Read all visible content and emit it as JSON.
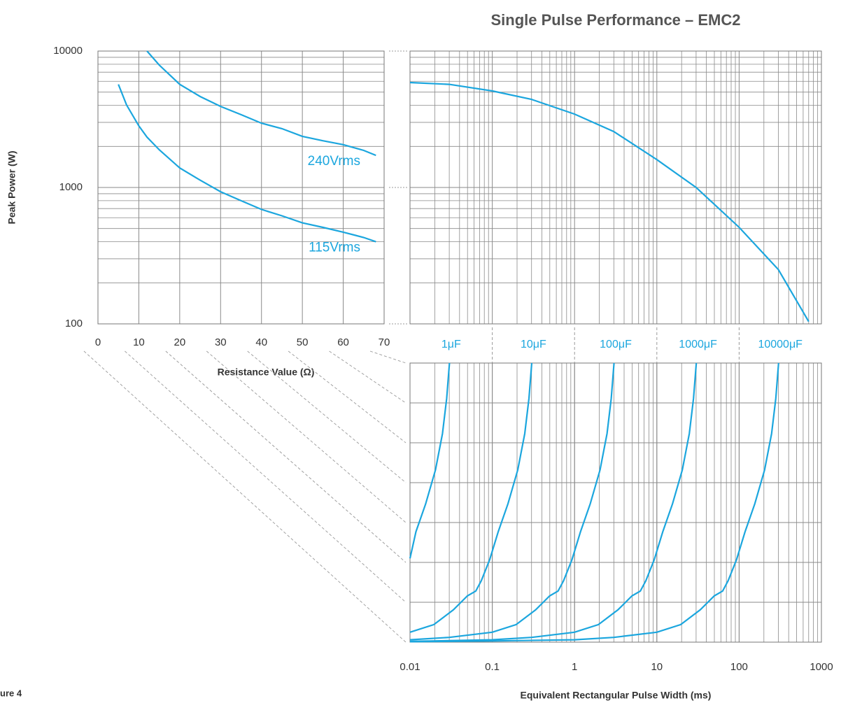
{
  "title": "Single Pulse Performance – EMC2",
  "figure_label": "ure 4",
  "chart_data": [
    {
      "type": "line",
      "ylabel": "Peak Power (W)",
      "xlabel": "Resistance Value (Ω)",
      "xlim": [
        0,
        70
      ],
      "xticks": [
        0,
        10,
        20,
        30,
        40,
        50,
        60,
        70
      ],
      "ylim": [
        100,
        10000
      ],
      "yticks": [
        100,
        1000,
        10000
      ],
      "log_y": true,
      "grid": true,
      "x": [
        5,
        7,
        10,
        12,
        15,
        20,
        25,
        30,
        35,
        40,
        45,
        50,
        55,
        60,
        65,
        68
      ],
      "series": [
        {
          "name": "240Vrms",
          "color": "#1ba6de",
          "values": [
            null,
            null,
            null,
            10000,
            7900,
            5700,
            4640,
            3930,
            3420,
            2960,
            2700,
            2370,
            2200,
            2060,
            1870,
            1720
          ]
        },
        {
          "name": "115Vrms",
          "color": "#1ba6de",
          "values": [
            5700,
            4030,
            2830,
            2340,
            1890,
            1390,
            1130,
            930,
            800,
            690,
            620,
            550,
            510,
            470,
            430,
            400
          ]
        }
      ]
    },
    {
      "type": "line",
      "xlim": [
        0.01,
        1000
      ],
      "log_x": true,
      "ylim": [
        100,
        10000
      ],
      "log_y": true,
      "grid": true,
      "x": [
        0.01,
        0.03,
        0.1,
        0.3,
        1,
        3,
        10,
        30,
        100,
        300,
        700
      ],
      "values": [
        5880,
        5700,
        5100,
        4420,
        3450,
        2570,
        1600,
        1000,
        510,
        250,
        104
      ],
      "color": "#1ba6de"
    },
    {
      "type": "line",
      "xlabel": "Equivalent Rectangular Pulse Width (ms)",
      "xlim": [
        0.01,
        1000
      ],
      "xticks": [
        0.01,
        0.1,
        1,
        10,
        100,
        1000
      ],
      "log_x": true,
      "ylim": [
        0,
        70
      ],
      "yticks": [
        0,
        10,
        20,
        30,
        40,
        50,
        60,
        70
      ],
      "grid": true,
      "series": [
        {
          "name": "1μF",
          "color": "#1ba6de",
          "x": [
            0.01,
            0.0118,
            0.0155,
            0.0204,
            0.0248,
            0.0279,
            0.0302
          ],
          "values": [
            21,
            27.7,
            34.7,
            43.2,
            52.3,
            61.1,
            70
          ]
        },
        {
          "name": "10μF",
          "color": "#1ba6de",
          "x": [
            0.01,
            0.0195,
            0.0337,
            0.0498,
            0.063,
            0.0736,
            0.0931,
            0.118,
            0.155,
            0.204,
            0.248,
            0.279,
            0.302
          ],
          "values": [
            2.5,
            4.4,
            8.1,
            11.6,
            12.8,
            15.4,
            20.7,
            27.7,
            34.7,
            43.2,
            52.3,
            61.1,
            70
          ]
        },
        {
          "name": "100μF",
          "color": "#1ba6de",
          "x": [
            0.01,
            0.03,
            0.1,
            0.195,
            0.337,
            0.498,
            0.63,
            0.736,
            0.931,
            1.18,
            1.55,
            2.04,
            2.48,
            2.79,
            3.02
          ],
          "values": [
            0.6,
            1.2,
            2.5,
            4.4,
            8.1,
            11.6,
            12.8,
            15.4,
            20.7,
            27.7,
            34.7,
            43.2,
            52.3,
            61.1,
            70
          ]
        },
        {
          "name": "1000μF",
          "color": "#1ba6de",
          "x": [
            0.01,
            0.1,
            0.3,
            1,
            1.95,
            3.37,
            4.98,
            6.3,
            7.36,
            9.31,
            11.8,
            15.5,
            20.4,
            24.8,
            27.9,
            30.2
          ],
          "values": [
            0.2,
            0.6,
            1.2,
            2.5,
            4.4,
            8.1,
            11.6,
            12.8,
            15.4,
            20.7,
            27.7,
            34.7,
            43.2,
            52.3,
            61.1,
            70
          ]
        },
        {
          "name": "10000μF",
          "color": "#1ba6de",
          "x": [
            0.01,
            0.1,
            1,
            3,
            10,
            19.5,
            33.7,
            49.8,
            63,
            73.6,
            93.1,
            118,
            155,
            204,
            248,
            279,
            302
          ],
          "values": [
            0.1,
            0.3,
            0.6,
            1.2,
            2.5,
            4.4,
            8.1,
            11.6,
            12.8,
            15.4,
            20.7,
            27.7,
            34.7,
            43.2,
            52.3,
            61.1,
            70
          ]
        }
      ]
    }
  ]
}
